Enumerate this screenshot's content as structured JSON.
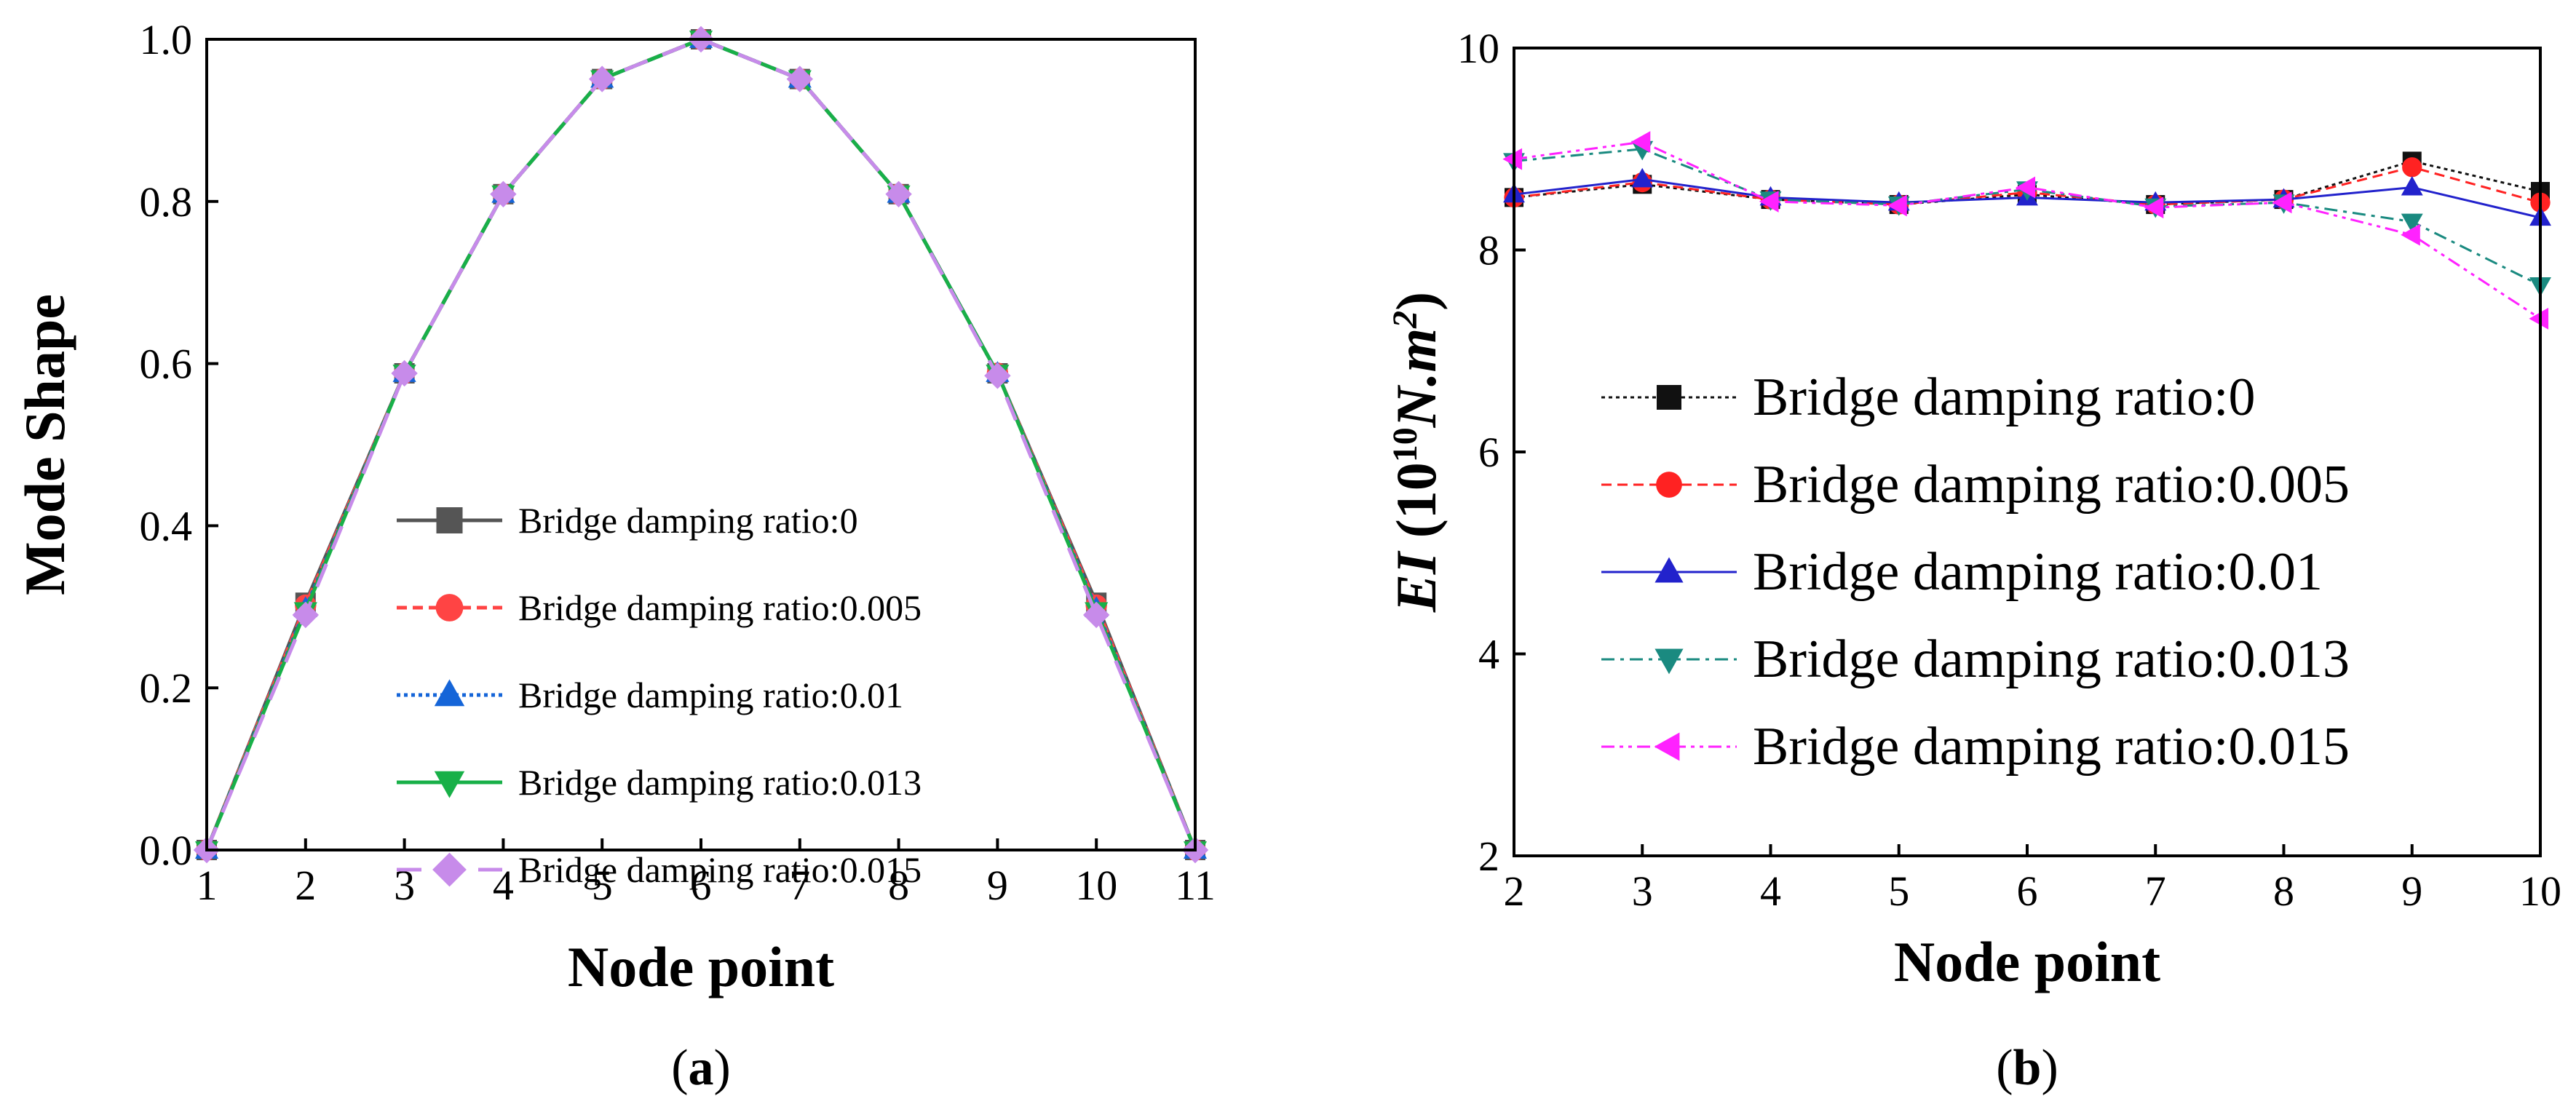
{
  "panel_a": {
    "caption_open": "(",
    "caption_letter": "a",
    "caption_close": ")"
  },
  "panel_b": {
    "caption_open": "(",
    "caption_letter": "b",
    "caption_close": ")",
    "ylabel_EI": "EI",
    "ylabel_open": " (10",
    "ylabel_exp": "10",
    "ylabel_unit": "N.m",
    "ylabel_unit_exp": "2",
    "ylabel_close": ")"
  },
  "chart_data": [
    {
      "type": "line",
      "panel": "a",
      "title": "",
      "xlabel": "Node point",
      "ylabel": "Mode Shape",
      "x": [
        1,
        2,
        3,
        4,
        5,
        6,
        7,
        8,
        9,
        10,
        11
      ],
      "xlim": [
        1,
        11
      ],
      "ylim": [
        0,
        1.0
      ],
      "xticks": [
        1,
        2,
        3,
        4,
        5,
        6,
        7,
        8,
        9,
        10,
        11
      ],
      "yticks": [
        "0.0",
        "0.2",
        "0.4",
        "0.6",
        "0.8",
        "1.0"
      ],
      "grid": false,
      "legend_position": "lower-center",
      "series": [
        {
          "name": "Bridge damping ratio:0",
          "color": "#555555",
          "marker": "square",
          "dash": "solid",
          "values": [
            0,
            0.305,
            0.588,
            0.809,
            0.951,
            1.0,
            0.951,
            0.809,
            0.588,
            0.305,
            0
          ]
        },
        {
          "name": "Bridge damping ratio:0.005",
          "color": "#ff4444",
          "marker": "circle",
          "dash": "dashed",
          "values": [
            0,
            0.302,
            0.588,
            0.809,
            0.951,
            1.0,
            0.951,
            0.809,
            0.588,
            0.302,
            0
          ]
        },
        {
          "name": "Bridge damping ratio:0.01",
          "color": "#1565d8",
          "marker": "triangle-up",
          "dash": "dotted",
          "values": [
            0,
            0.298,
            0.588,
            0.809,
            0.951,
            1.0,
            0.951,
            0.809,
            0.588,
            0.298,
            0
          ]
        },
        {
          "name": "Bridge damping ratio:0.013",
          "color": "#18b048",
          "marker": "triangle-down",
          "dash": "solid",
          "values": [
            0,
            0.295,
            0.588,
            0.809,
            0.951,
            1.0,
            0.951,
            0.809,
            0.588,
            0.295,
            0
          ]
        },
        {
          "name": "Bridge damping ratio:0.015",
          "color": "#c78bea",
          "marker": "diamond",
          "dash": "long-dash",
          "values": [
            0,
            0.29,
            0.588,
            0.809,
            0.951,
            1.0,
            0.951,
            0.809,
            0.585,
            0.29,
            0
          ]
        }
      ]
    },
    {
      "type": "line",
      "panel": "b",
      "title": "",
      "xlabel": "Node point",
      "ylabel": "EI (10^10 N.m^2)",
      "x": [
        2,
        3,
        4,
        5,
        6,
        7,
        8,
        9,
        10
      ],
      "xlim": [
        2,
        10
      ],
      "ylim": [
        2,
        10
      ],
      "xticks": [
        2,
        3,
        4,
        5,
        6,
        7,
        8,
        9,
        10
      ],
      "yticks": [
        "2",
        "4",
        "6",
        "8",
        "10"
      ],
      "grid": false,
      "legend_position": "center-left",
      "series": [
        {
          "name": "Bridge damping ratio:0",
          "color": "#111111",
          "marker": "square",
          "dash": "dotted",
          "values": [
            8.52,
            8.65,
            8.5,
            8.45,
            8.55,
            8.45,
            8.5,
            8.88,
            8.58
          ]
        },
        {
          "name": "Bridge damping ratio:0.005",
          "color": "#ff2222",
          "marker": "circle",
          "dash": "dashed",
          "values": [
            8.52,
            8.67,
            8.5,
            8.45,
            8.57,
            8.45,
            8.5,
            8.82,
            8.47
          ]
        },
        {
          "name": "Bridge damping ratio:0.01",
          "color": "#2222cc",
          "marker": "triangle-up",
          "dash": "solid",
          "values": [
            8.55,
            8.7,
            8.52,
            8.47,
            8.52,
            8.47,
            8.5,
            8.62,
            8.32
          ]
        },
        {
          "name": "Bridge damping ratio:0.013",
          "color": "#1a8a80",
          "marker": "triangle-down",
          "dash": "dash-dot",
          "values": [
            8.88,
            9.0,
            8.5,
            8.45,
            8.6,
            8.43,
            8.47,
            8.28,
            7.65
          ]
        },
        {
          "name": "Bridge damping ratio:0.015",
          "color": "#ff22ff",
          "marker": "triangle-left",
          "dash": "dash-dot-dot",
          "values": [
            8.9,
            9.07,
            8.48,
            8.44,
            8.62,
            8.42,
            8.47,
            8.15,
            7.32
          ]
        }
      ]
    }
  ]
}
